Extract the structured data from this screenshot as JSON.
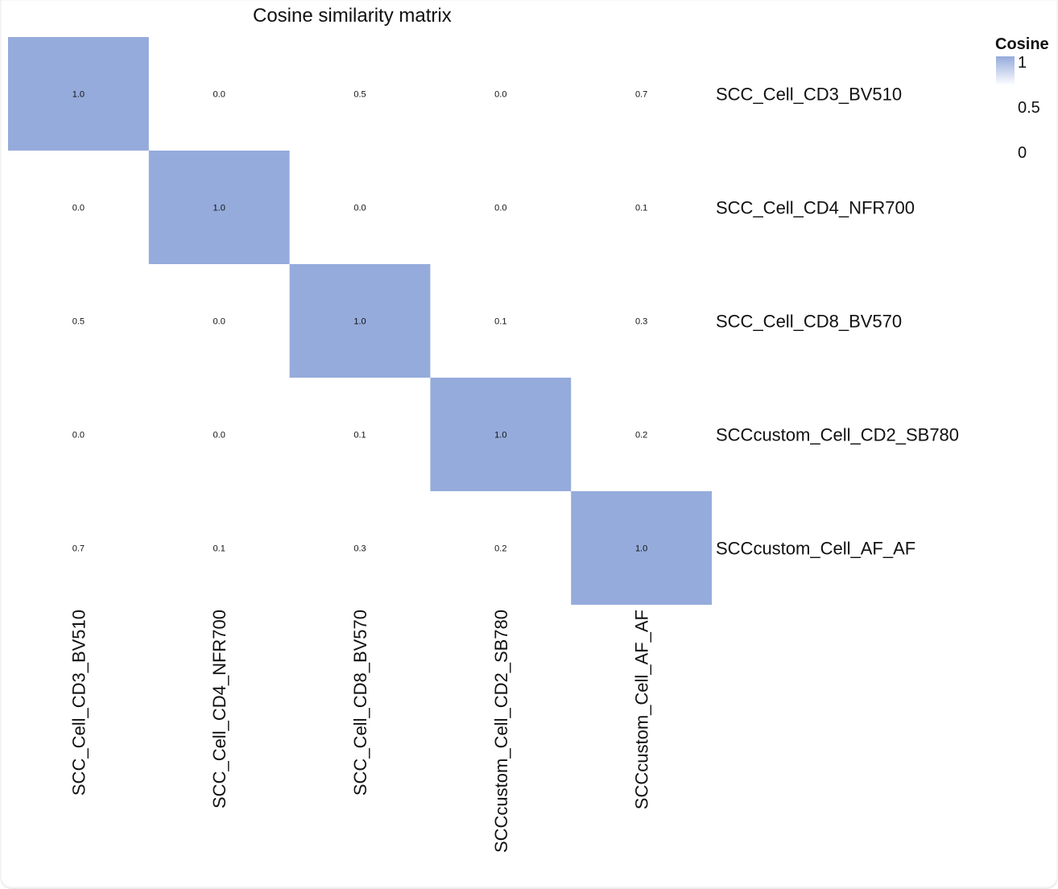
{
  "chart_data": {
    "type": "heatmap",
    "title": "Cosine similarity matrix",
    "rows": [
      "SCC_Cell_CD3_BV510",
      "SCC_Cell_CD4_NFR700",
      "SCC_Cell_CD8_BV570",
      "SCCcustom_Cell_CD2_SB780",
      "SCCcustom_Cell_AF_AF"
    ],
    "columns": [
      "SCC_Cell_CD3_BV510",
      "SCC_Cell_CD4_NFR700",
      "SCC_Cell_CD8_BV570",
      "SCCcustom_Cell_CD2_SB780",
      "SCCcustom_Cell_AF_AF"
    ],
    "values": [
      [
        1.0,
        0.0,
        0.5,
        0.0,
        0.7
      ],
      [
        0.0,
        1.0,
        0.0,
        0.0,
        0.1
      ],
      [
        0.5,
        0.0,
        1.0,
        0.1,
        0.3
      ],
      [
        0.0,
        0.0,
        0.1,
        1.0,
        0.2
      ],
      [
        0.7,
        0.1,
        0.3,
        0.2,
        1.0
      ]
    ],
    "labels": [
      [
        "1.0",
        "0.0",
        "0.5",
        "0.0",
        "0.7"
      ],
      [
        "0.0",
        "1.0",
        "0.0",
        "0.0",
        "0.1"
      ],
      [
        "0.5",
        "0.0",
        "1.0",
        "0.1",
        "0.3"
      ],
      [
        "0.0",
        "0.0",
        "0.1",
        "1.0",
        "0.2"
      ],
      [
        "0.7",
        "0.1",
        "0.3",
        "0.2",
        "1.0"
      ]
    ],
    "fill_threshold": 1.0,
    "fill_color": "#95abdb",
    "legend": {
      "title": "Cosine",
      "ticks": [
        "1",
        "0.5",
        "0"
      ],
      "position": "top-right"
    }
  }
}
